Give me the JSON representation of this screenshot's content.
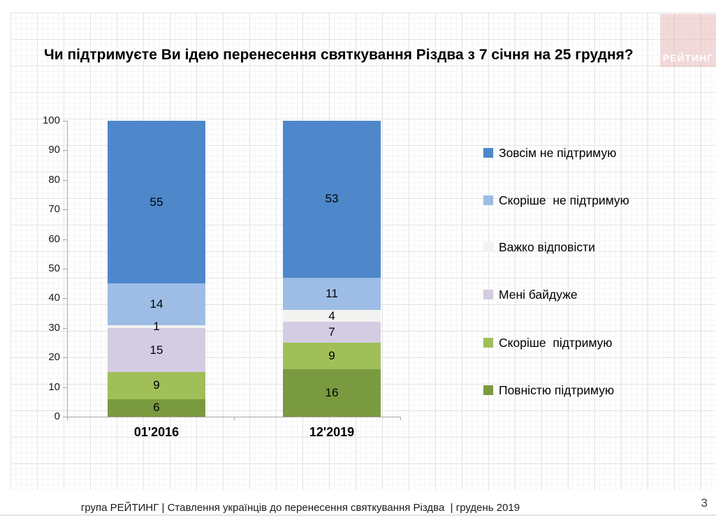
{
  "page": {
    "title": "Чи підтримуєте Ви ідею перенесення святкування Різдва з 7 січня на 25 грудня?",
    "logo_text": "РЕЙТИНГ",
    "footer": "група РЕЙТИНГ | Ставлення українців до перенесення святкування Різдва  | грудень 2019",
    "page_number": "3"
  },
  "chart_data": {
    "type": "bar",
    "stacked": true,
    "title": "Чи підтримуєте Ви ідею перенесення святкування Різдва з 7 січня на 25 грудня?",
    "categories": [
      "01'2016",
      "12'2019"
    ],
    "series": [
      {
        "name": "Зовсім не підтримую",
        "color": "#4e87ca",
        "values": [
          55,
          53
        ]
      },
      {
        "name": "Скоріше  не підтримую",
        "color": "#9dbde6",
        "values": [
          14,
          11
        ]
      },
      {
        "name": "Важко відповісти",
        "color": "#f2f2f0",
        "values": [
          1,
          4
        ]
      },
      {
        "name": "Мені байдуже",
        "color": "#d4cce2",
        "values": [
          15,
          7
        ]
      },
      {
        "name": "Скоріше  підтримую",
        "color": "#a0bf58",
        "values": [
          9,
          9
        ]
      },
      {
        "name": "Повністю підтримую",
        "color": "#7a9a40",
        "values": [
          6,
          16
        ]
      }
    ],
    "ylim": [
      0,
      100
    ],
    "ytick_step": 10,
    "xlabel": "",
    "ylabel": "",
    "legend_position": "right",
    "grid": "graph-paper background",
    "axis_color": "#a6a6a6"
  }
}
